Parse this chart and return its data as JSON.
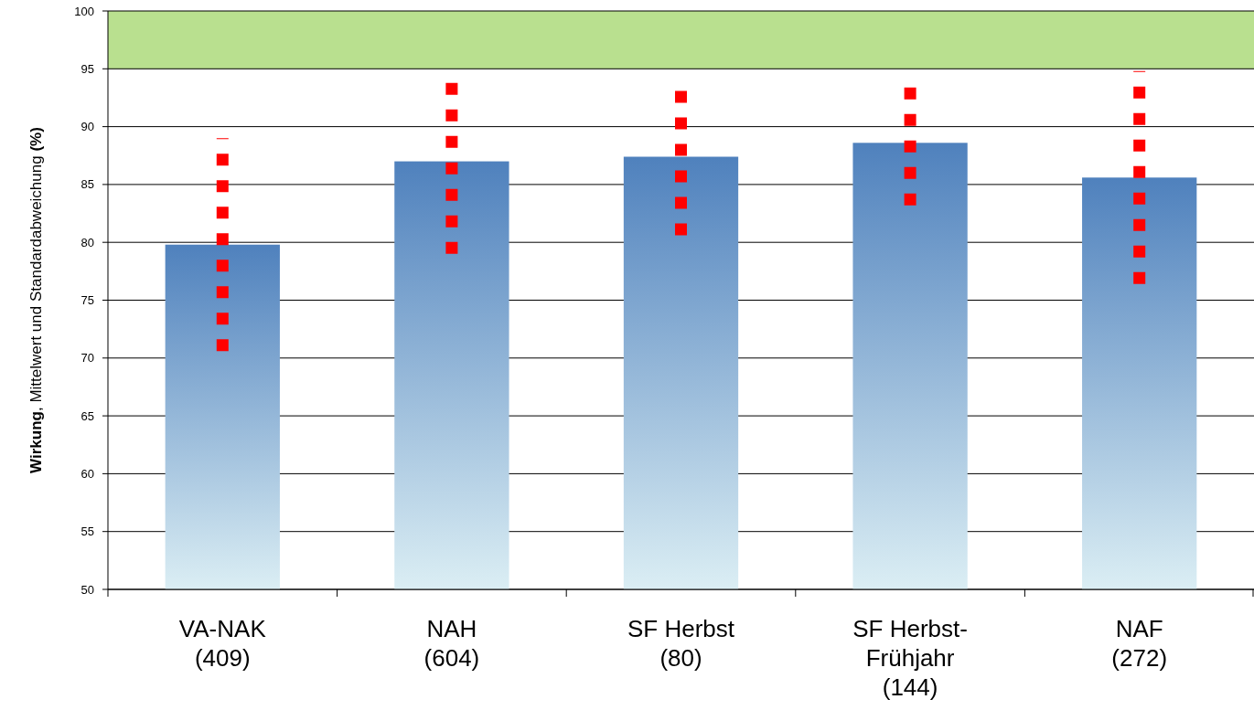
{
  "chart_data": {
    "type": "bar",
    "ylabel": "Wirkung, Mittelwert und Standardabweichung  (%)",
    "categories": [
      "VA-NAK\n\n(409)",
      "NAH\n\n(604)",
      "SF Herbst\n\n(80)",
      "SF Herbst-\nFrühjahr\n(144)",
      "NAF\n\n(272)"
    ],
    "values": [
      79.8,
      87.0,
      87.4,
      88.6,
      85.6
    ],
    "color": "#4f81bd",
    "errors": [
      9.2,
      8,
      6.8,
      5.4,
      9.2
    ],
    "ylim": [
      50,
      100
    ],
    "yticks": [
      50,
      55,
      60,
      65,
      70,
      75,
      80,
      85,
      90,
      95,
      100
    ],
    "grid": "y",
    "bands": [
      {
        "axis": "y",
        "from": 95,
        "to": 100,
        "color": "#b9e08f"
      }
    ]
  }
}
